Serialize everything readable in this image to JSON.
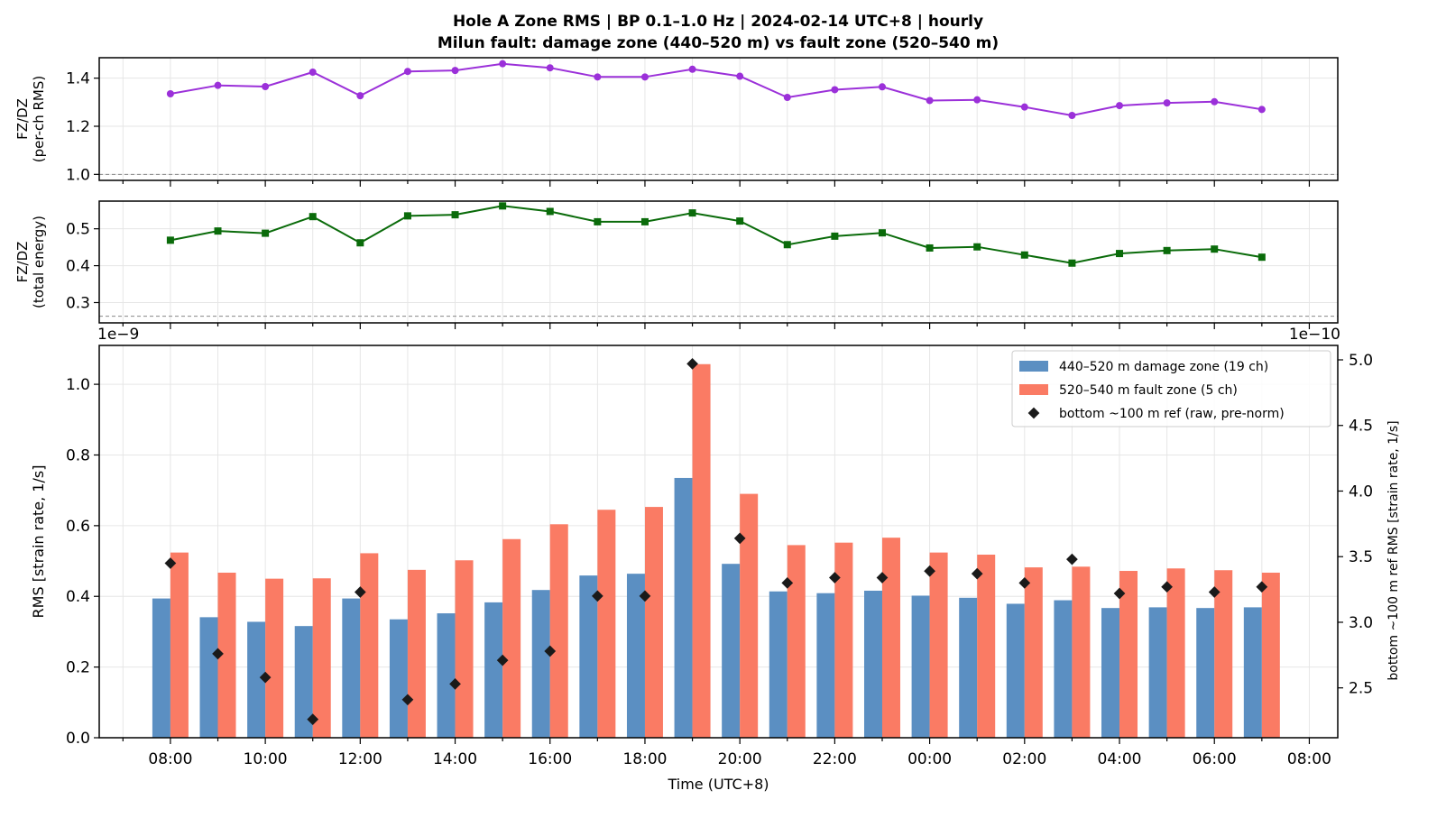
{
  "title": {
    "line1": "Hole A Zone RMS  |  BP 0.1–1.0 Hz  |  2024-02-14 UTC+8  |  hourly",
    "line2": "Milun fault: damage zone (440–520 m) vs fault zone (520–540 m)"
  },
  "colors": {
    "ratio_rms": "#9b30d9",
    "ratio_energy": "#0a6b0a",
    "damage": "#5b8fc2",
    "fault": "#fa7b64",
    "ref": "#1a1a1a",
    "grid": "#e6e6e6"
  },
  "chart_data": [
    {
      "type": "line",
      "panel": "top",
      "ylabel_line1": "FZ/DZ",
      "ylabel_line2": "(per-ch RMS)",
      "ylim": [
        0.975,
        1.485
      ],
      "yticks": [
        1.0,
        1.2,
        1.4
      ],
      "ytick_labels": [
        "1.0",
        "1.2",
        "1.4"
      ],
      "reference_line": 1.0,
      "grid": true,
      "x_hours": [
        0,
        1,
        2,
        3,
        4,
        5,
        6,
        7,
        8,
        9,
        10,
        11,
        12,
        13,
        14,
        15,
        16,
        17,
        18,
        19,
        20,
        21,
        22,
        23
      ],
      "values": [
        1.335,
        1.37,
        1.365,
        1.425,
        1.327,
        1.428,
        1.432,
        1.46,
        1.443,
        1.405,
        1.405,
        1.437,
        1.408,
        1.32,
        1.352,
        1.364,
        1.307,
        1.31,
        1.28,
        1.245,
        1.286,
        1.297,
        1.302,
        1.27
      ]
    },
    {
      "type": "line",
      "panel": "middle",
      "ylabel_line1": "FZ/DZ",
      "ylabel_line2": "(total energy)",
      "ylim": [
        0.245,
        0.575
      ],
      "yticks": [
        0.3,
        0.4,
        0.5
      ],
      "ytick_labels": [
        "0.3",
        "0.4",
        "0.5"
      ],
      "reference_line": 0.263,
      "grid": true,
      "x_hours": [
        0,
        1,
        2,
        3,
        4,
        5,
        6,
        7,
        8,
        9,
        10,
        11,
        12,
        13,
        14,
        15,
        16,
        17,
        18,
        19,
        20,
        21,
        22,
        23
      ],
      "values": [
        0.469,
        0.494,
        0.488,
        0.533,
        0.462,
        0.535,
        0.538,
        0.562,
        0.547,
        0.519,
        0.519,
        0.543,
        0.521,
        0.457,
        0.48,
        0.489,
        0.448,
        0.451,
        0.429,
        0.407,
        0.433,
        0.441,
        0.445,
        0.423
      ]
    },
    {
      "type": "bar",
      "panel": "bottom",
      "xlabel": "Time (UTC+8)",
      "ylabel": "RMS  [strain rate, 1/s]",
      "ylabel_right": "bottom ~100 m ref RMS  [strain rate, 1/s]",
      "left_offset_label": "1e−9",
      "right_offset_label": "1e−10",
      "ylim": [
        0.0,
        1.11
      ],
      "yticks": [
        0.0,
        0.2,
        0.4,
        0.6,
        0.8,
        1.0
      ],
      "ytick_labels": [
        "0.0",
        "0.2",
        "0.4",
        "0.6",
        "0.8",
        "1.0"
      ],
      "ylim_right": [
        2.12,
        5.11
      ],
      "yticks_right": [
        2.5,
        3.0,
        3.5,
        4.0,
        4.5,
        5.0
      ],
      "ytick_labels_right": [
        "2.5",
        "3.0",
        "3.5",
        "4.0",
        "4.5",
        "5.0"
      ],
      "xlim_hours": [
        -1.5,
        24.6
      ],
      "xticks_hours": [
        0,
        2,
        4,
        6,
        8,
        10,
        12,
        14,
        16,
        18,
        20,
        22,
        24
      ],
      "xtick_labels": [
        "08:00",
        "10:00",
        "12:00",
        "14:00",
        "16:00",
        "18:00",
        "20:00",
        "22:00",
        "00:00",
        "02:00",
        "04:00",
        "06:00",
        "08:00"
      ],
      "grid": true,
      "legend_position": "top-right",
      "x_hours": [
        0,
        1,
        2,
        3,
        4,
        5,
        6,
        7,
        8,
        9,
        10,
        11,
        12,
        13,
        14,
        15,
        16,
        17,
        18,
        19,
        20,
        21,
        22,
        23
      ],
      "series": [
        {
          "name": "440–520 m  damage zone (19 ch)",
          "kind": "bar",
          "axis": "left",
          "values": [
            0.394,
            0.341,
            0.328,
            0.316,
            0.394,
            0.335,
            0.352,
            0.383,
            0.418,
            0.459,
            0.464,
            0.735,
            0.492,
            0.414,
            0.409,
            0.416,
            0.402,
            0.396,
            0.379,
            0.389,
            0.367,
            0.369,
            0.367,
            0.369
          ]
        },
        {
          "name": "520–540 m  fault zone (5 ch)",
          "kind": "bar",
          "axis": "left",
          "values": [
            0.524,
            0.467,
            0.45,
            0.451,
            0.522,
            0.475,
            0.502,
            0.562,
            0.604,
            0.645,
            0.653,
            1.057,
            0.69,
            0.545,
            0.552,
            0.566,
            0.524,
            0.518,
            0.482,
            0.484,
            0.472,
            0.479,
            0.474,
            0.467
          ]
        },
        {
          "name": "bottom ~100 m ref (raw, pre-norm)",
          "kind": "scatter",
          "axis": "right",
          "values": [
            3.45,
            2.76,
            2.58,
            2.26,
            3.23,
            2.41,
            2.53,
            2.71,
            2.78,
            3.2,
            3.2,
            4.97,
            3.64,
            3.3,
            3.34,
            3.34,
            3.39,
            3.37,
            3.3,
            3.48,
            3.22,
            3.27,
            3.23,
            3.27
          ]
        }
      ]
    }
  ]
}
